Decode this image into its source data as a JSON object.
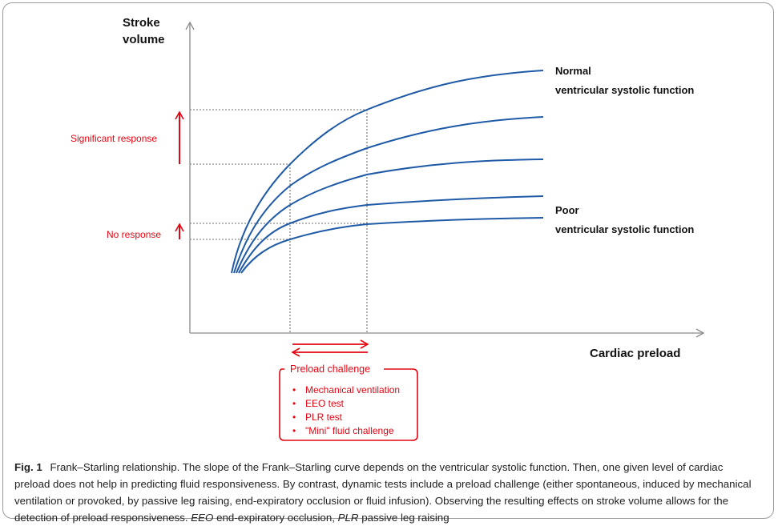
{
  "axes": {
    "y_label_line1": "Stroke",
    "y_label_line2": "volume",
    "x_label": "Cardiac preload"
  },
  "curve_labels": {
    "normal_line1": "Normal",
    "normal_line2": "ventricular systolic function",
    "poor_line1": "Poor",
    "poor_line2": "ventricular systolic function"
  },
  "responses": {
    "significant": "Significant response",
    "none": "No response"
  },
  "preload_challenge": {
    "title": "Preload challenge",
    "bullet": "•",
    "items": [
      "Mechanical ventilation",
      "EEO test",
      "PLR test",
      "\"Mini\" fluid challenge"
    ]
  },
  "caption": {
    "fig_label": "Fig. 1",
    "text_main": "Frank–Starling relationship. The slope of the Frank–Starling curve depends on the ventricular systolic function. Then, one given level of cardiac preload does not help in predicting fluid responsiveness. By contrast, dynamic tests include a preload challenge (either spontaneous, induced by mechanical ventilation or provoked, by passive leg raising, end-expiratory occlusion or fluid infusion). Observing the resulting effects on stroke volume allows for the detection of preload responsiveness.",
    "abbr1": "EEO",
    "abbr1_def": "end-expiratory occlusion,",
    "abbr2": "PLR",
    "abbr2_def": "passive leg raising"
  },
  "colors": {
    "curve": "#1f5aa6",
    "accent_red": "#e30613",
    "axis": "#8c8c8c",
    "dotted": "#6e6e6e"
  }
}
